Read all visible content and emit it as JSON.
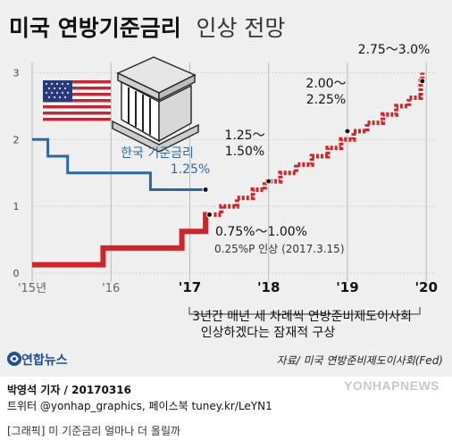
{
  "title": {
    "main": "미국 연방기준금리",
    "sub": "인상 전망"
  },
  "chart_data": {
    "type": "line",
    "x_ticks": [
      "'15년",
      "'16",
      "'17",
      "'18",
      "'19",
      "'20"
    ],
    "x_tick_values": [
      2015,
      2016,
      2017,
      2018,
      2019,
      2020
    ],
    "y_ticks": [
      "0",
      "1",
      "2",
      "3"
    ],
    "ylim": [
      0,
      3.1
    ],
    "xlim": [
      2015,
      2020.1
    ],
    "grid": true,
    "series": [
      {
        "name": "미국 연방기준금리",
        "style": "actual",
        "color": "#d2232a",
        "points": [
          [
            2015.0,
            0.125
          ],
          [
            2015.9,
            0.125
          ],
          [
            2015.9,
            0.375
          ],
          [
            2016.9,
            0.375
          ],
          [
            2016.9,
            0.625
          ],
          [
            2017.2,
            0.625
          ],
          [
            2017.2,
            0.875
          ],
          [
            2017.25,
            0.875
          ]
        ]
      },
      {
        "name": "미국 연방기준금리 전망",
        "style": "projected",
        "color": "#d2232a",
        "points": [
          [
            2017.25,
            0.875
          ],
          [
            2017.4,
            0.875
          ],
          [
            2017.4,
            1.0
          ],
          [
            2017.6,
            1.0
          ],
          [
            2017.6,
            1.125
          ],
          [
            2017.8,
            1.125
          ],
          [
            2017.8,
            1.25
          ],
          [
            2017.95,
            1.25
          ],
          [
            2017.95,
            1.375
          ],
          [
            2018.15,
            1.375
          ],
          [
            2018.15,
            1.5
          ],
          [
            2018.35,
            1.5
          ],
          [
            2018.35,
            1.625
          ],
          [
            2018.55,
            1.625
          ],
          [
            2018.55,
            1.75
          ],
          [
            2018.75,
            1.75
          ],
          [
            2018.75,
            1.875
          ],
          [
            2018.92,
            1.875
          ],
          [
            2018.92,
            2.0
          ],
          [
            2019.08,
            2.0
          ],
          [
            2019.08,
            2.125
          ],
          [
            2019.25,
            2.125
          ],
          [
            2019.25,
            2.25
          ],
          [
            2019.45,
            2.25
          ],
          [
            2019.45,
            2.375
          ],
          [
            2019.62,
            2.375
          ],
          [
            2019.62,
            2.5
          ],
          [
            2019.78,
            2.5
          ],
          [
            2019.78,
            2.625
          ],
          [
            2019.93,
            2.625
          ],
          [
            2019.93,
            2.875
          ],
          [
            2019.95,
            2.875
          ],
          [
            2019.95,
            3.0
          ]
        ]
      },
      {
        "name": "한국 기준금리",
        "color": "#2a6aa3",
        "points": [
          [
            2015.0,
            2.0
          ],
          [
            2015.2,
            2.0
          ],
          [
            2015.2,
            1.75
          ],
          [
            2015.45,
            1.75
          ],
          [
            2015.45,
            1.5
          ],
          [
            2016.5,
            1.5
          ],
          [
            2016.5,
            1.25
          ],
          [
            2017.2,
            1.25
          ]
        ]
      }
    ],
    "annotations": [
      {
        "text": "0.75%～1.00%",
        "x": 2017.22,
        "y": 0.85
      },
      {
        "text": "0.25%P 인상 (2017.3.15)"
      },
      {
        "text": "1.25～",
        "x": 2018.0
      },
      {
        "text": "1.50%",
        "x": 2018.0
      },
      {
        "text": "2.00～",
        "x": 2019.0
      },
      {
        "text": "2.25%",
        "x": 2019.0
      },
      {
        "text": "2.75～3.0%",
        "x": 2019.95
      },
      {
        "text": "한국 기준금리"
      },
      {
        "text": "1.25%"
      },
      {
        "text": "3년간 매년 세 차례씩 연방준비제도이사회"
      },
      {
        "text": "인상하겠다는 잠재적 구상"
      }
    ]
  },
  "colors": {
    "us_line": "#d2232a",
    "kr_line": "#2a6aa3",
    "background": "#efefef",
    "yonhap_blue": "#1d4e96"
  },
  "icons": [
    "us-flag-icon",
    "federal-building-icon",
    "yonhap-logo-icon"
  ],
  "source": "자료/ 미국 연방준비제도이사회(Fed)",
  "agency": "연합뉴스",
  "byline": "박영석 기자 / 20170316",
  "twitter": "트위터 @yonhap_graphics, 페이스북 tuney.kr/LeYN1",
  "caption": "[그래픽] 미 기준금리 얼마나 더 올릴까",
  "photo_credit": "YONHAPNEWS"
}
